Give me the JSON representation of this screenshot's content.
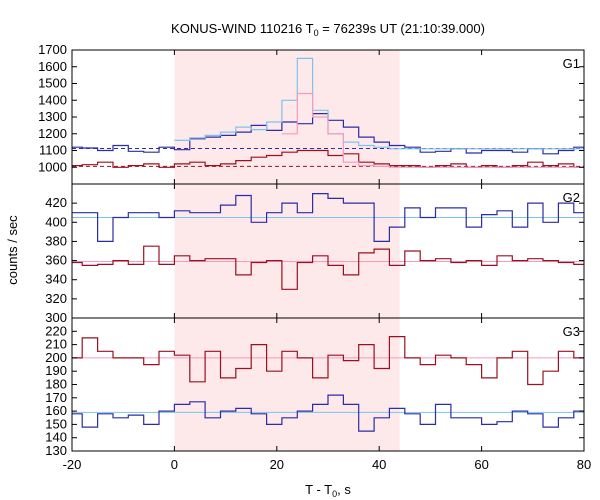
{
  "chart_data": {
    "type": "line",
    "title": "KONUS-WIND 110216 T0 = 76239s UT (21:10:39.000)",
    "title_parts": {
      "prefix": "KONUS-WIND 110216 T",
      "subscript": "0",
      "suffix": " = 76239s UT (21:10:39.000)"
    },
    "xlabel": "T - T0, s",
    "xlabel_parts": {
      "prefix": "T - T",
      "subscript": "0",
      "suffix": ", s"
    },
    "ylabel": "counts / sec",
    "xlim": [
      -20,
      80
    ],
    "xticks": [
      -20,
      0,
      20,
      40,
      60,
      80
    ],
    "highlight": {
      "x_start": 0,
      "x_end": 44,
      "color": "#fde8ea"
    },
    "colors": {
      "blue": "#2c2ca8",
      "red": "#9b1020",
      "lightblue": "#7cc4ee",
      "pink": "#f49ac4",
      "hl_blue_bg": "#7cc8f0",
      "hl_red_bg": "#f4a6c8"
    },
    "panels": [
      {
        "label": "G1",
        "ylim": [
          900,
          1700
        ],
        "yticks": [
          900,
          1000,
          1100,
          1200,
          1300,
          1400,
          1500,
          1600,
          1700
        ],
        "show_bottom_tick": false,
        "series": [
          {
            "color": "blue",
            "x": [
              -20,
              -18,
              -15,
              -12,
              -9,
              -6,
              -3,
              0,
              3,
              6,
              9,
              12,
              15,
              18,
              21,
              24,
              27,
              30,
              33,
              36,
              39,
              42,
              45,
              48,
              51,
              54,
              57,
              60,
              63,
              66,
              69,
              72,
              75,
              78
            ],
            "y": [
              1120,
              1115,
              1100,
              1130,
              1095,
              1090,
              1120,
              1105,
              1170,
              1180,
              1190,
              1210,
              1250,
              1220,
              1270,
              1260,
              1320,
              1280,
              1240,
              1180,
              1150,
              1130,
              1120,
              1090,
              1095,
              1110,
              1085,
              1100,
              1100,
              1090,
              1110,
              1080,
              1100,
              1120
            ]
          },
          {
            "color": "lightblue",
            "x": [
              0,
              3,
              6,
              9,
              12,
              15,
              18,
              21,
              24,
              27,
              30,
              33,
              36,
              39,
              42
            ],
            "y": [
              1160,
              1175,
              1190,
              1210,
              1240,
              1225,
              1270,
              1400,
              1650,
              1340,
              1200,
              1150,
              1130,
              1120,
              1110
            ]
          },
          {
            "color": "red",
            "x": [
              -20,
              -18,
              -15,
              -12,
              -9,
              -6,
              -3,
              0,
              3,
              6,
              9,
              12,
              15,
              18,
              21,
              24,
              27,
              30,
              33,
              36,
              39,
              42,
              45,
              48,
              51,
              54,
              57,
              60,
              63,
              66,
              69,
              72,
              75,
              78
            ],
            "y": [
              1010,
              1015,
              1030,
              1000,
              1010,
              1020,
              1000,
              1020,
              1030,
              1010,
              1020,
              1040,
              1060,
              1070,
              1090,
              1100,
              1100,
              1070,
              1080,
              1030,
              1020,
              1010,
              1010,
              1000,
              1010,
              1020,
              1000,
              1010,
              1000,
              1010,
              1030,
              1010,
              1020,
              1000
            ]
          },
          {
            "color": "pink",
            "x": [
              21,
              24,
              27,
              30,
              33,
              36,
              39,
              42
            ],
            "y": [
              1200,
              1440,
              1300,
              1200,
              1030,
              1010,
              1005,
              1000
            ]
          }
        ],
        "refs": [
          {
            "color": "blue",
            "y": 1112,
            "dashed": true
          },
          {
            "color": "red",
            "y": 1005,
            "dashed": true
          }
        ]
      },
      {
        "label": "G2",
        "ylim": [
          300,
          440
        ],
        "yticks": [
          300,
          320,
          340,
          360,
          380,
          400,
          420
        ],
        "show_bottom_tick": true,
        "series": [
          {
            "color": "blue",
            "x": [
              -20,
              -18,
              -15,
              -12,
              -9,
              -6,
              -3,
              0,
              3,
              6,
              9,
              12,
              15,
              18,
              21,
              24,
              27,
              30,
              33,
              36,
              39,
              42,
              45,
              48,
              51,
              54,
              57,
              60,
              63,
              66,
              69,
              72,
              75,
              78
            ],
            "y": [
              410,
              410,
              380,
              405,
              410,
              410,
              405,
              412,
              410,
              410,
              418,
              428,
              400,
              410,
              420,
              410,
              430,
              425,
              420,
              420,
              380,
              395,
              415,
              405,
              415,
              415,
              395,
              408,
              412,
              395,
              420,
              400,
              420,
              410
            ]
          },
          {
            "color": "red",
            "x": [
              -20,
              -18,
              -15,
              -12,
              -9,
              -6,
              -3,
              0,
              3,
              6,
              9,
              12,
              15,
              18,
              21,
              24,
              27,
              30,
              33,
              36,
              39,
              42,
              45,
              48,
              51,
              54,
              57,
              60,
              63,
              66,
              69,
              72,
              75,
              78
            ],
            "y": [
              358,
              355,
              356,
              360,
              356,
              375,
              356,
              365,
              360,
              362,
              362,
              345,
              358,
              360,
              330,
              358,
              365,
              355,
              345,
              368,
              372,
              355,
              370,
              360,
              362,
              358,
              360,
              355,
              365,
              360,
              362,
              360,
              358,
              356
            ]
          }
        ],
        "refs": [
          {
            "color": "lightblue",
            "y": 405,
            "dashed": false
          },
          {
            "color": "pink",
            "y": 359,
            "dashed": false
          }
        ]
      },
      {
        "label": "G3",
        "ylim": [
          130,
          230
        ],
        "yticks": [
          130,
          140,
          150,
          160,
          170,
          180,
          190,
          200,
          210,
          220
        ],
        "show_bottom_tick": true,
        "series": [
          {
            "color": "red",
            "x": [
              -20,
              -18,
              -15,
              -12,
              -9,
              -6,
              -3,
              0,
              3,
              6,
              9,
              12,
              15,
              18,
              21,
              24,
              27,
              30,
              33,
              36,
              39,
              42,
              45,
              48,
              51,
              54,
              57,
              60,
              63,
              66,
              69,
              72,
              75,
              78
            ],
            "y": [
              200,
              215,
              205,
              200,
              200,
              195,
              205,
              202,
              182,
              205,
              185,
              192,
              210,
              190,
              205,
              200,
              185,
              202,
              198,
              210,
              192,
              216,
              200,
              195,
              202,
              200,
              195,
              185,
              200,
              205,
              180,
              190,
              205,
              200
            ]
          },
          {
            "color": "blue",
            "x": [
              -20,
              -18,
              -15,
              -12,
              -9,
              -6,
              -3,
              0,
              3,
              6,
              9,
              12,
              15,
              18,
              21,
              24,
              27,
              30,
              33,
              36,
              39,
              42,
              45,
              48,
              51,
              54,
              57,
              60,
              63,
              66,
              69,
              72,
              75,
              78
            ],
            "y": [
              158,
              148,
              158,
              155,
              157,
              150,
              160,
              165,
              167,
              155,
              160,
              162,
              158,
              150,
              155,
              160,
              165,
              172,
              165,
              145,
              155,
              162,
              158,
              150,
              165,
              155,
              155,
              150,
              152,
              160,
              158,
              148,
              155,
              160
            ]
          }
        ],
        "refs": [
          {
            "color": "pink",
            "y": 200,
            "dashed": false
          },
          {
            "color": "lightblue",
            "y": 159,
            "dashed": false
          }
        ]
      }
    ]
  }
}
